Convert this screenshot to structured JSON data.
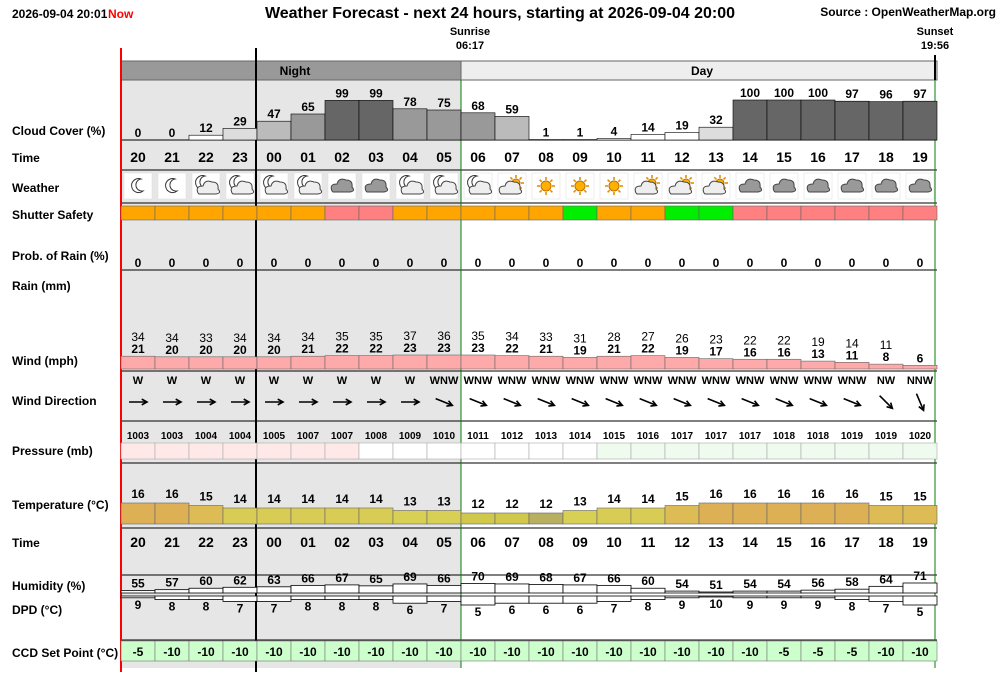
{
  "header": {
    "timestamp": "2026-09-04 20:01",
    "now_label": "Now",
    "title": "Weather Forecast - next 24 hours, starting at 2026-09-04 20:00",
    "source": "Source : OpenWeatherMap.org",
    "sunrise_label": "Sunrise",
    "sunrise_time": "06:17",
    "sunset_label": "Sunset",
    "sunset_time": "19:56",
    "night_label": "Night",
    "day_label": "Day"
  },
  "row_labels": {
    "cloud_cover": "Cloud Cover (%)",
    "time": "Time",
    "weather": "Weather",
    "shutter": "Shutter Safety",
    "rain_prob": "Prob. of Rain (%)",
    "rain": "Rain (mm)",
    "wind": "Wind (mph)",
    "wind_dir": "Wind Direction",
    "pressure": "Pressure (mb)",
    "temperature": "Temperature (°C)",
    "time2": "Time",
    "humidity": "Humidity (%)",
    "dpd": "DPD (°C)",
    "ccd": "CCD Set Point (°C)"
  },
  "colors": {
    "night_bg": "#e6e6e6",
    "shutter_orange": "#ffa500",
    "shutter_red": "#ff8080",
    "shutter_green": "#00ee00",
    "ccd_green": "#ccffcc",
    "now_red": "#ff0000",
    "sunrise_green": "#008000"
  },
  "chart_data": {
    "type": "table",
    "hours": [
      "20",
      "21",
      "22",
      "23",
      "00",
      "01",
      "02",
      "03",
      "04",
      "05",
      "06",
      "07",
      "08",
      "09",
      "10",
      "11",
      "12",
      "13",
      "14",
      "15",
      "16",
      "17",
      "18",
      "19"
    ],
    "cloud_cover": [
      0,
      0,
      12,
      29,
      47,
      65,
      99,
      99,
      78,
      75,
      68,
      59,
      1,
      1,
      4,
      14,
      19,
      32,
      100,
      100,
      100,
      97,
      96,
      97
    ],
    "weather_icons": [
      "moon-icon",
      "moon-icon",
      "moon-cloud-icon",
      "moon-cloud-icon",
      "moon-cloud-icon",
      "moon-cloud-icon",
      "cloud-icon",
      "cloud-icon",
      "moon-cloud-icon",
      "moon-cloud-icon",
      "moon-cloud-icon",
      "sun-cloud-icon",
      "sun-icon",
      "sun-icon",
      "sun-icon",
      "sun-cloud-icon",
      "sun-cloud-icon",
      "sun-cloud-icon",
      "cloud-icon",
      "cloud-icon",
      "cloud-icon",
      "cloud-icon",
      "cloud-icon",
      "cloud-icon"
    ],
    "shutter_safety": [
      "orange",
      "orange",
      "orange",
      "orange",
      "orange",
      "orange",
      "red",
      "red",
      "orange",
      "orange",
      "orange",
      "orange",
      "orange",
      "green",
      "orange",
      "orange",
      "green",
      "green",
      "red",
      "red",
      "red",
      "red",
      "red",
      "red"
    ],
    "rain_probability": [
      0,
      0,
      0,
      0,
      0,
      0,
      0,
      0,
      0,
      0,
      0,
      0,
      0,
      0,
      0,
      0,
      0,
      0,
      0,
      0,
      0,
      0,
      0,
      0
    ],
    "wind_gust": [
      "34",
      "34",
      "33",
      "34",
      "34",
      "34",
      "35",
      "35",
      "37",
      "36",
      "35",
      "34",
      "33",
      "31",
      "28",
      "27",
      "26",
      "23",
      "22",
      "22",
      "19",
      "14",
      "11",
      ""
    ],
    "wind_speed": [
      21,
      20,
      20,
      20,
      20,
      21,
      22,
      22,
      23,
      23,
      23,
      22,
      21,
      19,
      21,
      22,
      19,
      17,
      16,
      16,
      13,
      11,
      8,
      6
    ],
    "wind_direction": [
      "W",
      "W",
      "W",
      "W",
      "W",
      "W",
      "W",
      "W",
      "W",
      "WNW",
      "WNW",
      "WNW",
      "WNW",
      "WNW",
      "WNW",
      "WNW",
      "WNW",
      "WNW",
      "WNW",
      "WNW",
      "WNW",
      "WNW",
      "NW",
      "NNW"
    ],
    "wind_degrees": [
      270,
      270,
      270,
      270,
      270,
      270,
      270,
      270,
      270,
      292,
      292,
      292,
      292,
      292,
      292,
      292,
      292,
      292,
      292,
      292,
      292,
      292,
      315,
      337
    ],
    "pressure": [
      1003,
      1003,
      1004,
      1004,
      1005,
      1007,
      1007,
      1008,
      1009,
      1010,
      1011,
      1012,
      1013,
      1014,
      1015,
      1016,
      1017,
      1017,
      1017,
      1018,
      1018,
      1019,
      1019,
      1020
    ],
    "temperature": [
      16,
      16,
      15,
      14,
      14,
      14,
      14,
      14,
      13,
      13,
      12,
      12,
      12,
      13,
      14,
      14,
      15,
      16,
      16,
      16,
      16,
      16,
      15,
      15
    ],
    "humidity": [
      55,
      57,
      60,
      62,
      63,
      66,
      67,
      65,
      69,
      66,
      70,
      69,
      68,
      67,
      66,
      60,
      54,
      51,
      54,
      54,
      56,
      58,
      64,
      71
    ],
    "dpd": [
      9,
      8,
      8,
      7,
      7,
      8,
      8,
      8,
      6,
      7,
      5,
      6,
      6,
      6,
      7,
      8,
      9,
      10,
      9,
      9,
      9,
      8,
      7,
      5
    ],
    "ccd_set_point": [
      -5,
      -10,
      -10,
      -10,
      -10,
      -10,
      -10,
      -10,
      -10,
      -10,
      -10,
      -10,
      -10,
      -10,
      -10,
      -10,
      -10,
      -10,
      -10,
      -5,
      -5,
      -5,
      -10,
      -10
    ]
  }
}
